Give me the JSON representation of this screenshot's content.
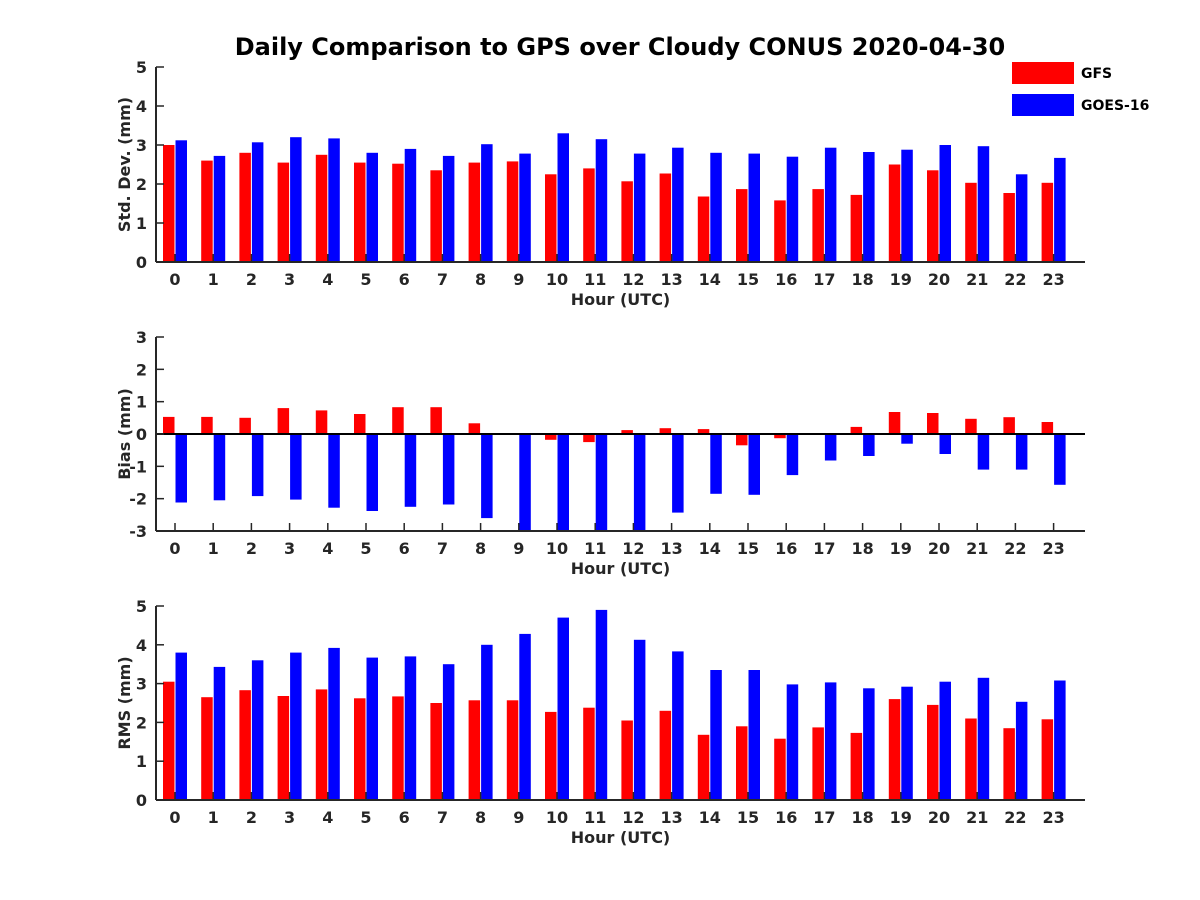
{
  "colors": {
    "GFS": "#ff0000",
    "GOES-16": "#0000ff"
  },
  "chart_data": {
    "title": "Daily Comparison to GPS over Cloudy CONUS 2020-04-30",
    "type": "bar",
    "legend": {
      "placement": "top-right",
      "entries": [
        "GFS",
        "GOES-16"
      ]
    },
    "panels": [
      {
        "type": "bar",
        "xlabel": "Hour (UTC)",
        "ylabel": "Std. Dev. (mm)",
        "categories": [
          "0",
          "1",
          "2",
          "3",
          "4",
          "5",
          "6",
          "7",
          "8",
          "9",
          "10",
          "11",
          "12",
          "13",
          "14",
          "15",
          "16",
          "17",
          "18",
          "19",
          "20",
          "21",
          "22",
          "23"
        ],
        "ylim": [
          0,
          5
        ],
        "yticks": [
          "0",
          "1",
          "2",
          "3",
          "4",
          "5"
        ],
        "series": [
          {
            "name": "GFS",
            "values": [
              3.0,
              2.6,
              2.8,
              2.55,
              2.75,
              2.55,
              2.52,
              2.35,
              2.55,
              2.58,
              2.25,
              2.4,
              2.07,
              2.27,
              1.68,
              1.87,
              1.58,
              1.87,
              1.72,
              2.5,
              2.35,
              2.03,
              1.77,
              2.03
            ]
          },
          {
            "name": "GOES-16",
            "values": [
              3.12,
              2.72,
              3.07,
              3.2,
              3.17,
              2.8,
              2.9,
              2.72,
              3.02,
              2.78,
              3.3,
              3.15,
              2.78,
              2.93,
              2.8,
              2.78,
              2.7,
              2.93,
              2.82,
              2.88,
              3.0,
              2.97,
              2.25,
              2.67
            ]
          }
        ]
      },
      {
        "type": "bar",
        "xlabel": "Hour (UTC)",
        "ylabel": "Bias (mm)",
        "categories": [
          "0",
          "1",
          "2",
          "3",
          "4",
          "5",
          "6",
          "7",
          "8",
          "9",
          "10",
          "11",
          "12",
          "13",
          "14",
          "15",
          "16",
          "17",
          "18",
          "19",
          "20",
          "21",
          "22",
          "23"
        ],
        "ylim": [
          -3,
          3
        ],
        "yticks": [
          "-3",
          "-2",
          "-1",
          "0",
          "1",
          "2",
          "3"
        ],
        "series": [
          {
            "name": "GFS",
            "values": [
              0.53,
              0.53,
              0.5,
              0.8,
              0.73,
              0.62,
              0.83,
              0.83,
              0.33,
              0.03,
              -0.18,
              -0.25,
              0.12,
              0.18,
              0.15,
              -0.35,
              -0.13,
              -0.03,
              0.22,
              0.68,
              0.65,
              0.47,
              0.52,
              0.37
            ]
          },
          {
            "name": "GOES-16",
            "values": [
              -2.12,
              -2.05,
              -1.92,
              -2.03,
              -2.28,
              -2.38,
              -2.25,
              -2.18,
              -2.6,
              -3.0,
              -3.0,
              -3.0,
              -3.0,
              -2.43,
              -1.85,
              -1.88,
              -1.27,
              -0.82,
              -0.68,
              -0.3,
              -0.62,
              -1.1,
              -1.1,
              -1.57
            ]
          }
        ]
      },
      {
        "type": "bar",
        "xlabel": "Hour (UTC)",
        "ylabel": "RMS (mm)",
        "categories": [
          "0",
          "1",
          "2",
          "3",
          "4",
          "5",
          "6",
          "7",
          "8",
          "9",
          "10",
          "11",
          "12",
          "13",
          "14",
          "15",
          "16",
          "17",
          "18",
          "19",
          "20",
          "21",
          "22",
          "23"
        ],
        "ylim": [
          0,
          5
        ],
        "yticks": [
          "0",
          "1",
          "2",
          "3",
          "4",
          "5"
        ],
        "series": [
          {
            "name": "GFS",
            "values": [
              3.05,
              2.65,
              2.83,
              2.68,
              2.85,
              2.62,
              2.67,
              2.5,
              2.57,
              2.57,
              2.27,
              2.38,
              2.05,
              2.3,
              1.68,
              1.9,
              1.58,
              1.87,
              1.73,
              2.6,
              2.45,
              2.1,
              1.85,
              2.08
            ]
          },
          {
            "name": "GOES-16",
            "values": [
              3.8,
              3.43,
              3.6,
              3.8,
              3.92,
              3.67,
              3.7,
              3.5,
              4.0,
              4.28,
              4.7,
              4.9,
              4.13,
              3.83,
              3.35,
              3.35,
              2.98,
              3.03,
              2.88,
              2.92,
              3.05,
              3.15,
              2.53,
              3.08
            ]
          }
        ]
      }
    ]
  }
}
